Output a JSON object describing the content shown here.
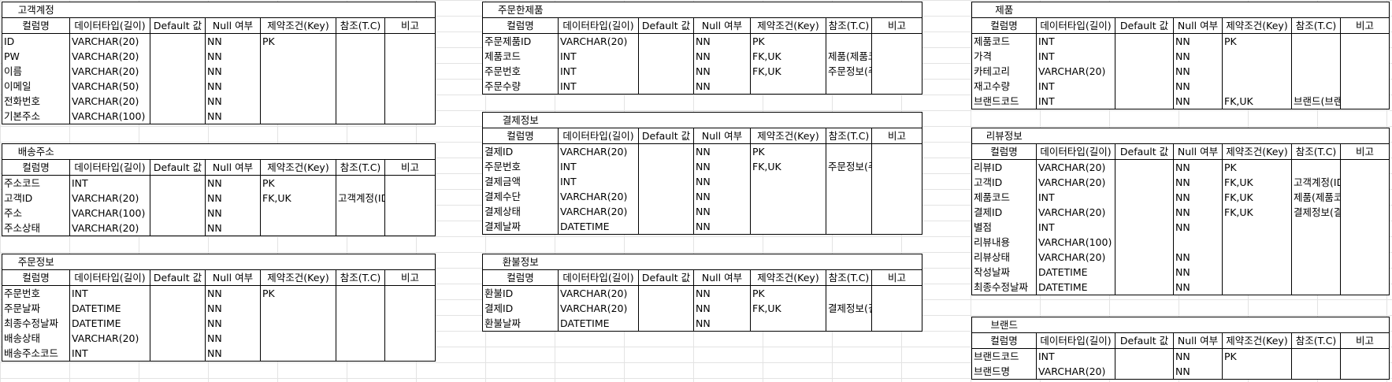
{
  "header": [
    "컬럼명",
    "데이터타입(길이)",
    "Default 값",
    "Null 여부",
    "제약조건(Key)",
    "참조(T.C)",
    "비고"
  ],
  "tables": {
    "customer": {
      "title": "고객계정",
      "rows": [
        [
          "ID",
          "VARCHAR(20)",
          "",
          "NN",
          "PK",
          "",
          ""
        ],
        [
          "PW",
          "VARCHAR(20)",
          "",
          "NN",
          "",
          "",
          ""
        ],
        [
          "이름",
          "VARCHAR(20)",
          "",
          "NN",
          "",
          "",
          ""
        ],
        [
          "이메일",
          "VARCHAR(50)",
          "",
          "NN",
          "",
          "",
          ""
        ],
        [
          "전화번호",
          "VARCHAR(20)",
          "",
          "NN",
          "",
          "",
          ""
        ],
        [
          "기본주소",
          "VARCHAR(100)",
          "",
          "NN",
          "",
          "",
          ""
        ]
      ]
    },
    "address": {
      "title": "배송주소",
      "rows": [
        [
          "주소코드",
          "INT",
          "",
          "NN",
          "PK",
          "",
          ""
        ],
        [
          "고객ID",
          "VARCHAR(20)",
          "",
          "NN",
          "FK,UK",
          "고객계정(ID)",
          ""
        ],
        [
          "주소",
          "VARCHAR(100)",
          "",
          "NN",
          "",
          "",
          ""
        ],
        [
          "주소상태",
          "VARCHAR(20)",
          "",
          "NN",
          "",
          "",
          ""
        ]
      ]
    },
    "order": {
      "title": "주문정보",
      "rows": [
        [
          "주문번호",
          "INT",
          "",
          "NN",
          "PK",
          "",
          ""
        ],
        [
          "주문날짜",
          "DATETIME",
          "",
          "NN",
          "",
          "",
          ""
        ],
        [
          "최종수정날짜",
          "DATETIME",
          "",
          "NN",
          "",
          "",
          ""
        ],
        [
          "배송상태",
          "VARCHAR(20)",
          "",
          "NN",
          "",
          "",
          ""
        ],
        [
          "배송주소코드",
          "INT",
          "",
          "NN",
          "",
          "",
          ""
        ]
      ]
    },
    "order_product": {
      "title": "주문한제품",
      "rows": [
        [
          "주문제품ID",
          "VARCHAR(20)",
          "",
          "NN",
          "PK",
          "",
          ""
        ],
        [
          "제품코드",
          "INT",
          "",
          "NN",
          "FK,UK",
          "제품(제품코드)",
          ""
        ],
        [
          "주문번호",
          "INT",
          "",
          "NN",
          "FK,UK",
          "주문정보(주문번호)",
          ""
        ],
        [
          "주문수량",
          "INT",
          "",
          "NN",
          "",
          "",
          ""
        ]
      ]
    },
    "payment": {
      "title": "결제정보",
      "rows": [
        [
          "결제ID",
          "VARCHAR(20)",
          "",
          "NN",
          "PK",
          "",
          ""
        ],
        [
          "주문번호",
          "INT",
          "",
          "NN",
          "FK,UK",
          "주문정보(주문번호)",
          ""
        ],
        [
          "결제금액",
          "INT",
          "",
          "NN",
          "",
          "",
          ""
        ],
        [
          "결제수단",
          "VARCHAR(20)",
          "",
          "NN",
          "",
          "",
          ""
        ],
        [
          "결제상태",
          "VARCHAR(20)",
          "",
          "NN",
          "",
          "",
          ""
        ],
        [
          "결제날짜",
          "DATETIME",
          "",
          "NN",
          "",
          "",
          ""
        ]
      ]
    },
    "refund": {
      "title": "환불정보",
      "rows": [
        [
          "환불ID",
          "VARCHAR(20)",
          "",
          "NN",
          "PK",
          "",
          ""
        ],
        [
          "결제ID",
          "VARCHAR(20)",
          "",
          "NN",
          "FK,UK",
          "결제정보(결제ID)",
          ""
        ],
        [
          "환불날짜",
          "DATETIME",
          "",
          "NN",
          "",
          "",
          ""
        ]
      ]
    },
    "product": {
      "title": "제품",
      "rows": [
        [
          "제품코드",
          "INT",
          "",
          "NN",
          "PK",
          "",
          ""
        ],
        [
          "가격",
          "INT",
          "",
          "NN",
          "",
          "",
          ""
        ],
        [
          "카테고리",
          "VARCHAR(20)",
          "",
          "NN",
          "",
          "",
          ""
        ],
        [
          "재고수량",
          "INT",
          "",
          "NN",
          "",
          "",
          ""
        ],
        [
          "브랜드코드",
          "INT",
          "",
          "NN",
          "FK,UK",
          "브랜드(브랜드코드)",
          ""
        ]
      ]
    },
    "review": {
      "title": "리뷰정보",
      "rows": [
        [
          "리뷰ID",
          "VARCHAR(20)",
          "",
          "NN",
          "PK",
          "",
          ""
        ],
        [
          "고객ID",
          "VARCHAR(20)",
          "",
          "NN",
          "FK,UK",
          "고객계정(ID)",
          ""
        ],
        [
          "제품코드",
          "INT",
          "",
          "NN",
          "FK,UK",
          "제품(제품코드)",
          ""
        ],
        [
          "결제ID",
          "VARCHAR(20)",
          "",
          "NN",
          "FK,UK",
          "결제정보(결제ID)",
          ""
        ],
        [
          "별점",
          "INT",
          "",
          "NN",
          "",
          "",
          ""
        ],
        [
          "리뷰내용",
          "VARCHAR(100)",
          "",
          "",
          "",
          "",
          ""
        ],
        [
          "리뷰상태",
          "VARCHAR(20)",
          "",
          "NN",
          "",
          "",
          ""
        ],
        [
          "작성날짜",
          "DATETIME",
          "",
          "NN",
          "",
          "",
          ""
        ],
        [
          "최종수정날짜",
          "DATETIME",
          "",
          "NN",
          "",
          "",
          ""
        ]
      ]
    },
    "brand": {
      "title": "브랜드",
      "rows": [
        [
          "브랜드코드",
          "INT",
          "",
          "NN",
          "PK",
          "",
          ""
        ],
        [
          "브랜드명",
          "VARCHAR(20)",
          "",
          "NN",
          "",
          "",
          ""
        ]
      ]
    }
  }
}
